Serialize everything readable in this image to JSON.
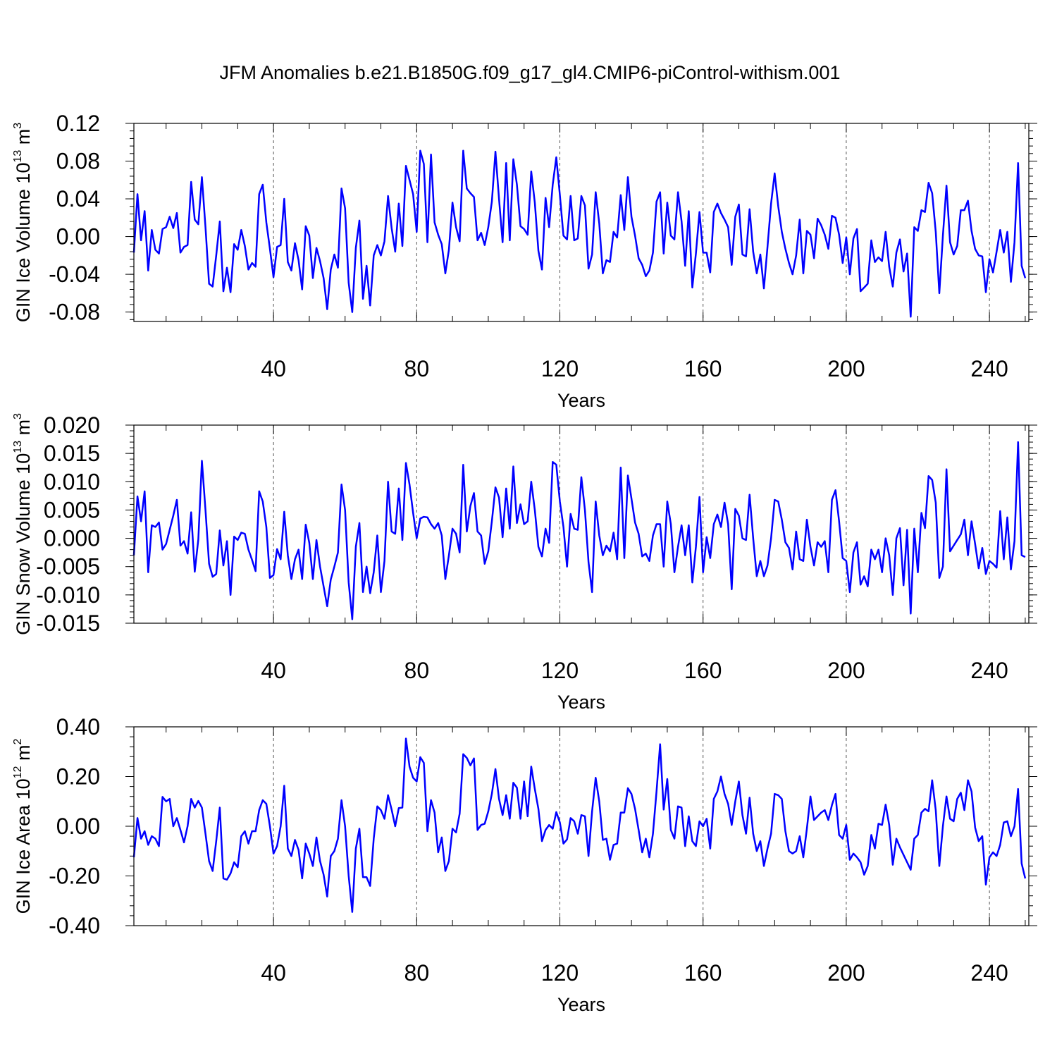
{
  "title": "JFM Anomalies b.e21.B1850G.f09_g17_gl4.CMIP6-piControl-withism.001",
  "chart_data": [
    {
      "type": "line",
      "ylabel": "GIN Ice Volume 10",
      "ylabel_exp": "13",
      "ylabel_unit": " m",
      "ylabel_unit_exp": "3",
      "xlabel": "Years",
      "xlim": [
        1,
        251
      ],
      "ylim": [
        -0.09,
        0.12
      ],
      "yticks": [
        -0.08,
        -0.04,
        0.0,
        0.04,
        0.08,
        0.12
      ],
      "ytick_labels": [
        "-0.08",
        "-0.04",
        "0.00",
        "0.04",
        "0.08",
        "0.12"
      ],
      "xticks": [
        40,
        80,
        120,
        160,
        200,
        240
      ],
      "xtick_labels": [
        "40",
        "80",
        "120",
        "160",
        "200",
        "240"
      ],
      "grid": "vertical dashed at major x ticks",
      "color": "#0000ff",
      "values": [
        -0.017,
        0.045,
        -0.004,
        0.027,
        -0.036,
        0.007,
        -0.014,
        -0.018,
        0.008,
        0.01,
        0.021,
        0.009,
        0.025,
        -0.017,
        -0.011,
        -0.009,
        0.058,
        0.018,
        0.013,
        0.063,
        0.01,
        -0.05,
        -0.053,
        -0.02,
        0.016,
        -0.058,
        -0.033,
        -0.059,
        -0.008,
        -0.014,
        0.007,
        -0.01,
        -0.035,
        -0.028,
        -0.032,
        0.045,
        0.055,
        0.015,
        -0.013,
        -0.043,
        -0.011,
        -0.009,
        0.04,
        -0.027,
        -0.036,
        -0.007,
        -0.025,
        -0.056,
        0.011,
        0.001,
        -0.044,
        -0.012,
        -0.026,
        -0.044,
        -0.077,
        -0.035,
        -0.019,
        -0.033,
        0.051,
        0.03,
        -0.049,
        -0.08,
        -0.012,
        0.017,
        -0.066,
        -0.031,
        -0.073,
        -0.02,
        -0.009,
        -0.02,
        -0.005,
        0.043,
        0.009,
        -0.016,
        0.035,
        -0.01,
        0.075,
        0.06,
        0.045,
        0.005,
        0.091,
        0.077,
        -0.006,
        0.087,
        0.015,
        0.002,
        -0.008,
        -0.039,
        -0.014,
        0.036,
        0.01,
        -0.005,
        0.091,
        0.051,
        0.046,
        0.042,
        -0.004,
        0.004,
        -0.009,
        0.01,
        0.037,
        0.09,
        0.04,
        -0.006,
        0.078,
        -0.004,
        0.082,
        0.055,
        0.011,
        0.008,
        0.002,
        0.069,
        0.036,
        -0.015,
        -0.035,
        0.041,
        0.01,
        0.055,
        0.084,
        0.044,
        0.001,
        -0.003,
        0.043,
        -0.004,
        -0.002,
        0.043,
        0.033,
        -0.034,
        -0.019,
        0.047,
        0.014,
        -0.039,
        -0.025,
        -0.027,
        0.005,
        -0.001,
        0.044,
        0.007,
        0.063,
        0.021,
        0.001,
        -0.023,
        -0.03,
        -0.042,
        -0.036,
        -0.017,
        0.037,
        0.047,
        -0.018,
        0.036,
        0.001,
        -0.003,
        0.047,
        0.016,
        -0.031,
        0.027,
        -0.054,
        -0.018,
        0.026,
        -0.017,
        -0.017,
        -0.038,
        0.026,
        0.035,
        0.025,
        0.018,
        0.01,
        -0.03,
        0.021,
        0.034,
        -0.019,
        -0.021,
        0.029,
        -0.016,
        -0.039,
        -0.019,
        -0.055,
        -0.011,
        0.035,
        0.067,
        0.032,
        0.005,
        -0.013,
        -0.028,
        -0.04,
        -0.02,
        0.018,
        -0.039,
        0.006,
        0.002,
        -0.023,
        0.019,
        0.012,
        0.002,
        -0.013,
        0.022,
        0.02,
        0.002,
        -0.028,
        -0.001,
        -0.04,
        -0.002,
        0.008,
        -0.058,
        -0.054,
        -0.05,
        -0.004,
        -0.027,
        -0.022,
        -0.026,
        0.005,
        -0.032,
        -0.053,
        -0.017,
        -0.003,
        -0.037,
        -0.018,
        -0.085,
        0.01,
        0.006,
        0.028,
        0.026,
        0.057,
        0.046,
        0.005,
        -0.06,
        0.001,
        0.054,
        -0.006,
        -0.019,
        -0.01,
        0.028,
        0.028,
        0.038,
        0.006,
        -0.013,
        -0.02,
        -0.021,
        -0.059,
        -0.024,
        -0.038,
        -0.016,
        0.007,
        -0.017,
        0.005,
        -0.048,
        -0.006,
        0.078,
        -0.031,
        -0.044
      ]
    },
    {
      "type": "line",
      "ylabel": "GIN Snow Volume 10",
      "ylabel_exp": "13",
      "ylabel_unit": " m",
      "ylabel_unit_exp": "3",
      "xlabel": "Years",
      "xlim": [
        1,
        251
      ],
      "ylim": [
        -0.015,
        0.02
      ],
      "yticks": [
        -0.015,
        -0.01,
        -0.005,
        0.0,
        0.005,
        0.01,
        0.015,
        0.02
      ],
      "ytick_labels": [
        "-0.015",
        "-0.010",
        "-0.005",
        "0.000",
        "0.005",
        "0.010",
        "0.015",
        "0.020"
      ],
      "xticks": [
        40,
        80,
        120,
        160,
        200,
        240
      ],
      "xtick_labels": [
        "40",
        "80",
        "120",
        "160",
        "200",
        "240"
      ],
      "grid": "vertical dashed at major x ticks",
      "color": "#0000ff",
      "values": [
        -0.003,
        0.0074,
        0.003,
        0.0083,
        -0.006,
        0.0023,
        0.002,
        0.0028,
        -0.002,
        -0.001,
        0.0015,
        0.004,
        0.0068,
        -0.0013,
        -0.0005,
        -0.0027,
        0.0046,
        -0.0059,
        -0.0002,
        0.0137,
        0.005,
        -0.0045,
        -0.0068,
        -0.0063,
        0.0014,
        -0.0048,
        -0.0005,
        -0.01,
        0.0003,
        -0.0003,
        0.001,
        0.0008,
        -0.002,
        -0.0038,
        -0.0058,
        0.0083,
        0.0065,
        0.002,
        -0.007,
        -0.0065,
        -0.0019,
        -0.0037,
        0.0047,
        -0.003,
        -0.0072,
        -0.0037,
        -0.002,
        -0.0072,
        0.0024,
        -0.0008,
        -0.0072,
        -0.0003,
        -0.005,
        -0.0085,
        -0.012,
        -0.0073,
        -0.005,
        -0.0025,
        0.0095,
        0.005,
        -0.0078,
        -0.0143,
        -0.0015,
        0.0027,
        -0.0095,
        -0.005,
        -0.0097,
        -0.006,
        0.0005,
        -0.0095,
        -0.004,
        0.01,
        0.0012,
        0.0008,
        0.0088,
        -0.0003,
        0.0133,
        0.0095,
        0.0045,
        0.0,
        0.0035,
        0.0038,
        0.0037,
        0.0025,
        0.0017,
        0.0027,
        0.0005,
        -0.0072,
        -0.003,
        0.0017,
        0.0008,
        -0.0025,
        0.013,
        0.0012,
        0.0057,
        0.008,
        0.0012,
        0.0005,
        -0.0045,
        -0.0023,
        0.003,
        0.009,
        0.0072,
        0.0002,
        0.0088,
        0.0017,
        0.0127,
        0.0027,
        0.006,
        0.0025,
        0.003,
        0.01,
        0.005,
        -0.0015,
        -0.0032,
        0.0017,
        -0.0008,
        0.0135,
        0.013,
        0.0065,
        0.002,
        -0.005,
        0.0043,
        0.0017,
        0.0015,
        0.0108,
        0.005,
        -0.0042,
        -0.0095,
        0.0065,
        0.0005,
        -0.003,
        -0.0013,
        -0.0023,
        0.001,
        -0.0037,
        0.0125,
        -0.0035,
        0.0111,
        0.007,
        0.0028,
        0.0008,
        -0.0032,
        -0.0027,
        -0.004,
        0.0005,
        0.0025,
        0.0025,
        -0.005,
        0.0065,
        0.0025,
        -0.006,
        -0.0015,
        0.0023,
        -0.003,
        0.0023,
        -0.0078,
        -0.0015,
        0.0073,
        -0.006,
        0.0002,
        -0.0035,
        0.0025,
        0.0042,
        0.002,
        0.0063,
        0.0025,
        -0.009,
        0.0052,
        0.004,
        0.0,
        -0.0003,
        0.0077,
        0.0,
        -0.0067,
        -0.004,
        -0.0067,
        -0.0048,
        0.0,
        0.0068,
        0.0065,
        0.0033,
        -0.0007,
        -0.0017,
        -0.0055,
        0.0012,
        -0.0037,
        -0.004,
        0.0033,
        -0.0015,
        -0.0048,
        -0.0007,
        -0.0015,
        -0.0005,
        -0.006,
        0.0068,
        0.0085,
        0.003,
        -0.0035,
        -0.004,
        -0.0095,
        -0.0025,
        -0.0007,
        -0.0082,
        -0.0067,
        -0.0085,
        -0.002,
        -0.0037,
        -0.002,
        -0.006,
        0.0,
        -0.003,
        -0.01,
        0.0,
        0.0018,
        -0.0083,
        0.0015,
        -0.0133,
        0.0017,
        -0.006,
        0.0045,
        0.0018,
        0.011,
        0.0103,
        0.0063,
        -0.007,
        -0.005,
        0.0122,
        -0.0023,
        -0.0013,
        -0.0003,
        0.0007,
        0.0033,
        -0.003,
        0.003,
        -0.001,
        -0.0053,
        -0.0017,
        -0.0063,
        -0.004,
        -0.0045,
        -0.0052,
        0.0048,
        -0.0037,
        0.0037,
        -0.0055,
        -0.0005,
        0.017,
        -0.003,
        -0.0033
      ]
    },
    {
      "type": "line",
      "ylabel": "GIN Ice Area 10",
      "ylabel_exp": "12",
      "ylabel_unit": " m",
      "ylabel_unit_exp": "2",
      "xlabel": "Years",
      "xlim": [
        1,
        251
      ],
      "ylim": [
        -0.4,
        0.4
      ],
      "yticks": [
        -0.4,
        -0.2,
        0.0,
        0.2,
        0.4
      ],
      "ytick_labels": [
        "-0.40",
        "-0.20",
        "0.00",
        "0.20",
        "0.40"
      ],
      "xticks": [
        40,
        80,
        120,
        160,
        200,
        240
      ],
      "xtick_labels": [
        "40",
        "80",
        "120",
        "160",
        "200",
        "240"
      ],
      "grid": "vertical dashed at major x ticks",
      "color": "#0000ff",
      "values": [
        -0.125,
        0.033,
        -0.05,
        -0.02,
        -0.075,
        -0.04,
        -0.05,
        -0.08,
        0.118,
        0.1,
        0.11,
        0.0,
        0.033,
        -0.015,
        -0.065,
        0.0,
        0.11,
        0.075,
        0.102,
        0.075,
        -0.03,
        -0.14,
        -0.18,
        -0.06,
        0.075,
        -0.21,
        -0.215,
        -0.19,
        -0.145,
        -0.165,
        -0.04,
        -0.02,
        -0.07,
        -0.02,
        -0.02,
        0.065,
        0.105,
        0.09,
        0.0,
        -0.11,
        -0.08,
        0.0,
        0.163,
        -0.09,
        -0.12,
        -0.055,
        -0.095,
        -0.21,
        -0.07,
        -0.11,
        -0.16,
        -0.045,
        -0.14,
        -0.195,
        -0.283,
        -0.12,
        -0.1,
        -0.05,
        0.105,
        0.0,
        -0.2,
        -0.345,
        -0.09,
        -0.01,
        -0.205,
        -0.205,
        -0.24,
        -0.05,
        0.08,
        0.065,
        0.03,
        0.125,
        0.067,
        0.0,
        0.073,
        0.075,
        0.353,
        0.24,
        0.195,
        0.18,
        0.278,
        0.255,
        -0.02,
        0.105,
        0.055,
        -0.105,
        -0.045,
        -0.18,
        -0.14,
        -0.01,
        -0.025,
        0.05,
        0.29,
        0.275,
        0.245,
        0.273,
        -0.015,
        0.005,
        0.01,
        0.06,
        0.13,
        0.23,
        0.11,
        0.045,
        0.125,
        0.03,
        0.175,
        0.155,
        0.03,
        0.18,
        0.04,
        0.24,
        0.15,
        0.07,
        -0.06,
        -0.015,
        0.005,
        -0.01,
        0.057,
        0.015,
        -0.07,
        -0.053,
        0.033,
        0.02,
        -0.03,
        0.045,
        0.04,
        -0.12,
        0.06,
        0.195,
        0.1,
        -0.055,
        -0.05,
        -0.135,
        -0.075,
        -0.07,
        0.055,
        0.055,
        0.153,
        0.13,
        0.07,
        -0.015,
        -0.105,
        -0.05,
        -0.125,
        -0.03,
        0.14,
        0.33,
        0.067,
        0.19,
        -0.015,
        -0.05,
        0.08,
        0.075,
        -0.08,
        0.04,
        -0.06,
        -0.08,
        0.02,
        0.0,
        0.03,
        -0.09,
        0.11,
        0.14,
        0.2,
        0.13,
        0.09,
        0.005,
        0.1,
        0.18,
        0.045,
        -0.03,
        0.115,
        -0.03,
        -0.1,
        -0.06,
        -0.16,
        -0.09,
        -0.03,
        0.13,
        0.125,
        0.11,
        -0.02,
        -0.1,
        -0.11,
        -0.1,
        -0.04,
        -0.125,
        -0.01,
        0.12,
        0.025,
        0.04,
        0.055,
        0.065,
        0.025,
        0.085,
        0.13,
        -0.035,
        -0.05,
        0.005,
        -0.135,
        -0.11,
        -0.125,
        -0.145,
        -0.195,
        -0.16,
        -0.035,
        -0.09,
        0.01,
        0.005,
        0.087,
        0.005,
        -0.155,
        -0.05,
        -0.085,
        -0.115,
        -0.145,
        -0.175,
        -0.05,
        -0.035,
        0.055,
        0.07,
        0.06,
        0.185,
        0.065,
        -0.16,
        0.0,
        0.12,
        0.03,
        0.02,
        0.11,
        0.135,
        0.065,
        0.185,
        0.14,
        -0.005,
        -0.06,
        -0.04,
        -0.235,
        -0.125,
        -0.105,
        -0.12,
        -0.075,
        0.015,
        0.02,
        -0.04,
        0.0,
        0.15,
        -0.15,
        -0.21
      ]
    }
  ]
}
